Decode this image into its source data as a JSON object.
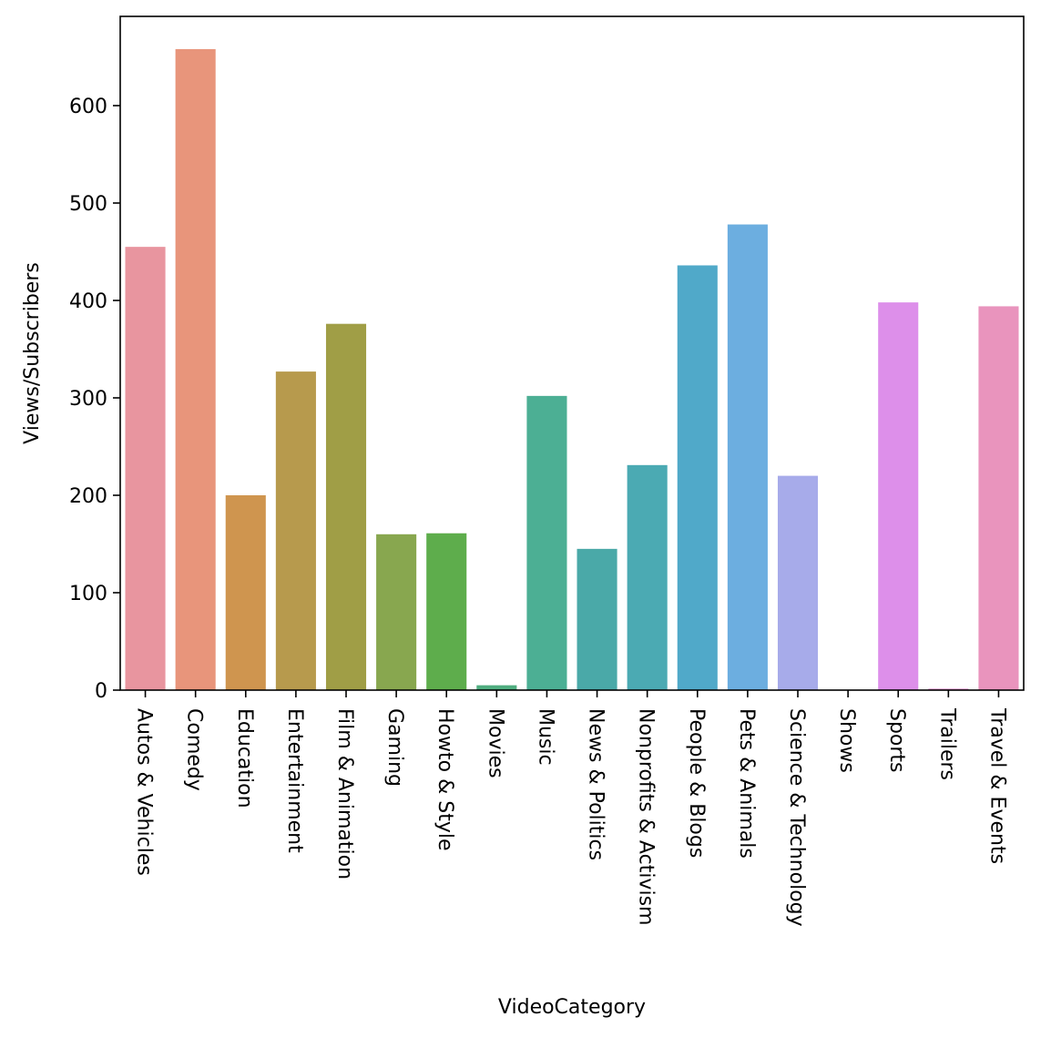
{
  "chart_data": {
    "type": "bar",
    "title": "",
    "xlabel": "VideoCategory",
    "ylabel": "Views/Subscribers",
    "ylim": [
      0,
      690
    ],
    "yticks": [
      0,
      100,
      200,
      300,
      400,
      500,
      600
    ],
    "grid": false,
    "legend": "none",
    "categories": [
      "Autos & Vehicles",
      "Comedy",
      "Education",
      "Entertainment",
      "Film & Animation",
      "Gaming",
      "Howto & Style",
      "Movies",
      "Music",
      "News & Politics",
      "Nonprofits & Activism",
      "People & Blogs",
      "Pets & Animals",
      "Science & Technology",
      "Shows",
      "Sports",
      "Trailers",
      "Travel & Events"
    ],
    "values": [
      455,
      658,
      200,
      327,
      376,
      160,
      161,
      5,
      302,
      145,
      231,
      436,
      478,
      220,
      0,
      398,
      1.5,
      394
    ],
    "colors": [
      "#e8959f",
      "#e8957b",
      "#cf954f",
      "#b79a4d",
      "#a09e46",
      "#88a74f",
      "#5ead4c",
      "#50ae80",
      "#4caf94",
      "#4aa9a8",
      "#4baab3",
      "#50a9c9",
      "#6caee0",
      "#a7abea",
      "#cc96ec",
      "#dd8fea",
      "#e68ece",
      "#e994bd"
    ]
  }
}
